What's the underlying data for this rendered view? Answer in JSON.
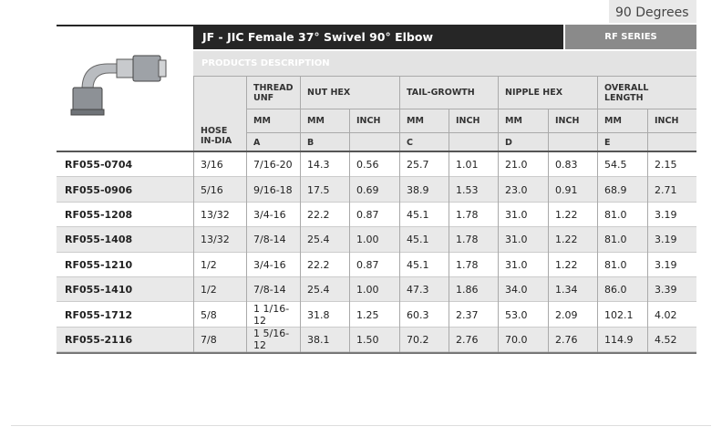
{
  "header": {
    "corner_text": "90 Degrees",
    "title": "JF - JIC Female 37° Swivel 90° Elbow",
    "series": "RF SERIES",
    "products_description": "PRODUCTS DESCRIPTION"
  },
  "table": {
    "group_headers": [
      "HOSE IN-DIA",
      "THREAD UNF",
      "NUT HEX",
      "TAIL-GROWTH",
      "NIPPLE HEX",
      "OVERALL LENGTH"
    ],
    "unit_row": [
      "MM",
      "MM",
      "INCH",
      "MM",
      "INCH",
      "MM",
      "INCH",
      "MM",
      "INCH"
    ],
    "letter_row": [
      "A",
      "B",
      "C",
      "D",
      "E"
    ],
    "rows": [
      [
        "RF055-0704",
        "3/16",
        "7/16-20",
        "14.3",
        "0.56",
        "25.7",
        "1.01",
        "21.0",
        "0.83",
        "54.5",
        "2.15"
      ],
      [
        "RF055-0906",
        "5/16",
        "9/16-18",
        "17.5",
        "0.69",
        "38.9",
        "1.53",
        "23.0",
        "0.91",
        "68.9",
        "2.71"
      ],
      [
        "RF055-1208",
        "13/32",
        "3/4-16",
        "22.2",
        "0.87",
        "45.1",
        "1.78",
        "31.0",
        "1.22",
        "81.0",
        "3.19"
      ],
      [
        "RF055-1408",
        "13/32",
        "7/8-14",
        "25.4",
        "1.00",
        "45.1",
        "1.78",
        "31.0",
        "1.22",
        "81.0",
        "3.19"
      ],
      [
        "RF055-1210",
        "1/2",
        "3/4-16",
        "22.2",
        "0.87",
        "45.1",
        "1.78",
        "31.0",
        "1.22",
        "81.0",
        "3.19"
      ],
      [
        "RF055-1410",
        "1/2",
        "7/8-14",
        "25.4",
        "1.00",
        "47.3",
        "1.86",
        "34.0",
        "1.34",
        "86.0",
        "3.39"
      ],
      [
        "RF055-1712",
        "5/8",
        "1 1/16-12",
        "31.8",
        "1.25",
        "60.3",
        "2.37",
        "53.0",
        "2.09",
        "102.1",
        "4.02"
      ],
      [
        "RF055-2116",
        "7/8",
        "1 5/16-12",
        "38.1",
        "1.50",
        "70.2",
        "2.76",
        "70.0",
        "2.76",
        "114.9",
        "4.52"
      ]
    ]
  }
}
